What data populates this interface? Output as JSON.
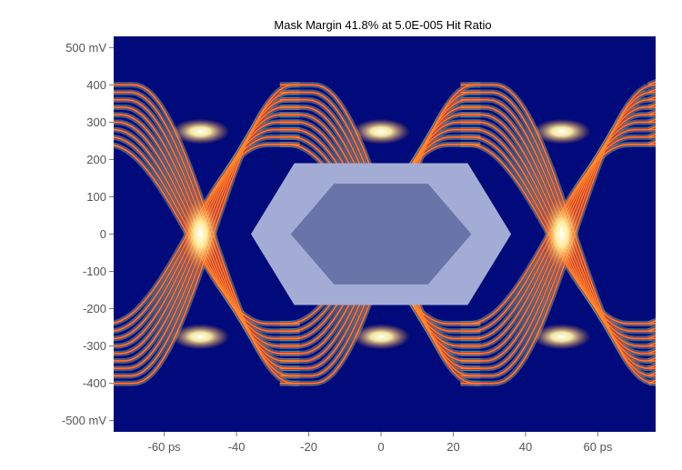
{
  "chart_data": {
    "type": "heatmap",
    "subtype": "eye-diagram",
    "title": "Mask Margin 41.8% at 5.0E-005 Hit Ratio",
    "xlabel": "",
    "ylabel": "",
    "xlim": [
      -74,
      76
    ],
    "ylim": [
      -530,
      530
    ],
    "x_ticks": [
      {
        "value": -60,
        "label": "-60 ps"
      },
      {
        "value": -40,
        "label": "-40"
      },
      {
        "value": -20,
        "label": "-20"
      },
      {
        "value": 0,
        "label": "0"
      },
      {
        "value": 20,
        "label": "20"
      },
      {
        "value": 40,
        "label": "40"
      },
      {
        "value": 60,
        "label": "60 ps"
      }
    ],
    "y_ticks": [
      {
        "value": 500,
        "label": "500 mV"
      },
      {
        "value": 400,
        "label": "400"
      },
      {
        "value": 300,
        "label": "300"
      },
      {
        "value": 200,
        "label": "200"
      },
      {
        "value": 100,
        "label": "100"
      },
      {
        "value": 0,
        "label": "0"
      },
      {
        "value": -100,
        "label": "-100"
      },
      {
        "value": -200,
        "label": "-200"
      },
      {
        "value": -300,
        "label": "-300"
      },
      {
        "value": -400,
        "label": "-400"
      },
      {
        "value": -500,
        "label": "-500 mV"
      }
    ],
    "grid": false,
    "crossings_x": [
      -50,
      0,
      50
    ],
    "rails": {
      "high": {
        "center": 275,
        "min": 240,
        "max": 400
      },
      "low": {
        "center": -275,
        "min": -400,
        "max": -240
      }
    },
    "mask_outer": [
      [
        -36,
        0
      ],
      [
        -24,
        190
      ],
      [
        24,
        190
      ],
      [
        36,
        0
      ],
      [
        24,
        -190
      ],
      [
        -24,
        -190
      ]
    ],
    "mask_inner": [
      [
        -25,
        0
      ],
      [
        -13,
        135
      ],
      [
        13,
        135
      ],
      [
        25,
        0
      ],
      [
        13,
        -135
      ],
      [
        -13,
        -135
      ]
    ],
    "colors": {
      "background": "#000a7a",
      "mask_outer": "#a3acd4",
      "mask_inner": "#6975a8",
      "trace_edge": "#3fb8b8",
      "trace_low": "#d82a2a",
      "trace_mid": "#ff8a2a",
      "trace_high": "#fff3a0"
    }
  }
}
